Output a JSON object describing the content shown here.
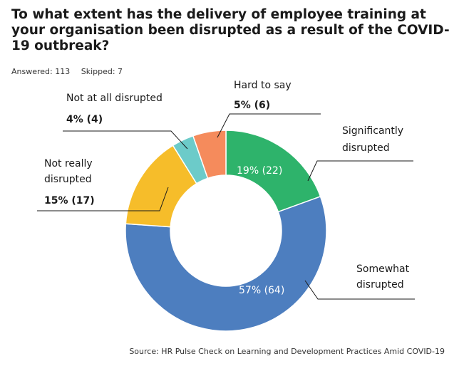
{
  "chart_data": {
    "type": "pie",
    "title": "To what extent has the delivery of employee training at your organisation been disrupted as a result of the COVID-19 outbreak?",
    "answered": "Answered: 113",
    "skipped": "Skipped: 7",
    "source": "Source: HR Pulse Check on Learning and Development Practices Amid COVID-19",
    "slices": [
      {
        "label_lines": [
          "Significantly",
          "disrupted"
        ],
        "value": 22,
        "percent": 19,
        "value_text": "19% (22)",
        "color": "#2eb36b"
      },
      {
        "label_lines": [
          "Somewhat",
          "disrupted"
        ],
        "value": 64,
        "percent": 57,
        "value_text": "57% (64)",
        "color": "#4d7ebf"
      },
      {
        "label_lines": [
          "Not really",
          "disrupted"
        ],
        "value": 17,
        "percent": 15,
        "value_text": "15% (17)",
        "color": "#f6bd2a"
      },
      {
        "label_lines": [
          "Not at all disrupted"
        ],
        "value": 4,
        "percent": 4,
        "value_text": "4% (4)",
        "color": "#6ccbc9"
      },
      {
        "label_lines": [
          "Hard to say"
        ],
        "value": 6,
        "percent": 5,
        "value_text": "5% (6)",
        "color": "#f58b5c"
      }
    ]
  }
}
